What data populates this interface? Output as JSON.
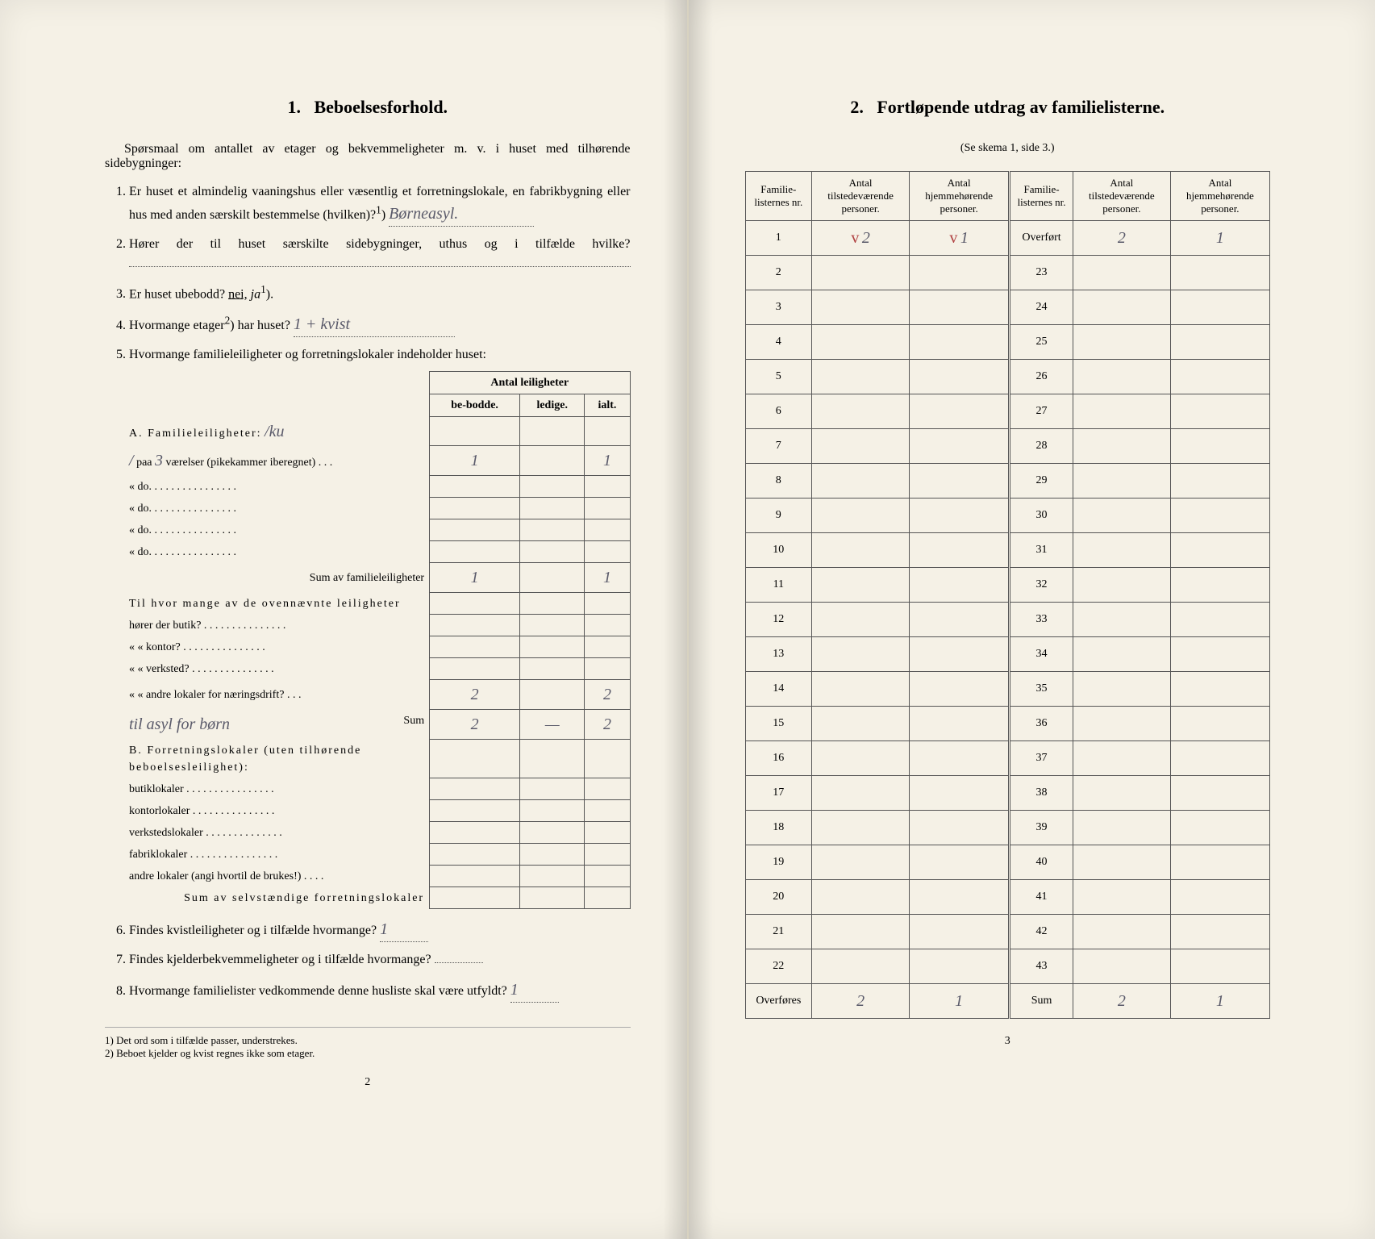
{
  "left": {
    "section_number": "1.",
    "section_title": "Beboelsesforhold.",
    "intro": "Spørsmaal om antallet av etager og bekvemmeligheter m. v. i huset med tilhørende sidebygninger:",
    "q1": "Er huset et almindelig vaaningshus eller væsentlig et forretningslokale, en fabrikbygning eller hus med anden særskilt bestemmelse (hvilken)?",
    "q1_sup": "1",
    "q1_answer": "Børneasyl.",
    "q2": "Hører der til huset særskilte sidebygninger, uthus og i tilfælde hvilke?",
    "q2_answer": "",
    "q3_pre": "Er huset ubebodd?",
    "q3_nei": "nei,",
    "q3_ja": "ja",
    "q3_sup": "1",
    "q4_pre": "Hvormange etager",
    "q4_sup": "2",
    "q4_post": ") har huset?",
    "q4_answer": "1 + kvist",
    "q5": "Hvormange familieleiligheter og forretningslokaler indeholder huset:",
    "table_header_group": "Antal leiligheter",
    "table_header_bebodde": "be-bodde.",
    "table_header_ledige": "ledige.",
    "table_header_ialt": "ialt.",
    "sectionA_title": "A. Familieleiligheter:",
    "sectionA_note": "/ku",
    "rowA1_prefix": "/",
    "rowA1_paa": "paa",
    "rowA1_num": "3",
    "rowA1_text": "værelser (pikekammer iberegnet) . . .",
    "rowA1_bebodde": "1",
    "rowA1_ledige": "",
    "rowA1_ialt": "1",
    "rowA2": "«        do.        . . . . . . . . . . . . . . .",
    "rowA3": "«        do.        . . . . . . . . . . . . . . .",
    "rowA4": "«        do.        . . . . . . . . . . . . . . .",
    "rowA5": "«        do.        . . . . . . . . . . . . . . .",
    "sumA_label": "Sum av familieleiligheter",
    "sumA_bebodde": "1",
    "sumA_ledige": "",
    "sumA_ialt": "1",
    "ovennevnte_q": "Til hvor mange av de ovennævnte leiligheter",
    "butik": "hører der butik? . . . . . . . . . . . . . . .",
    "kontor": "«     « kontor? . . . . . . . . . . . . . . .",
    "verksted": "«     « verksted? . . . . . . . . . . . . . . .",
    "andre_naering": "«     « andre lokaler for næringsdrift? . . .",
    "andre_naering_bebodde": "2",
    "andre_naering_ialt": "2",
    "handwritten_note": "til asyl for børn",
    "sum_label": "Sum",
    "sum_bebodde": "2",
    "sum_ledige": "—",
    "sum_ialt": "2",
    "sectionB_title": "B. Forretningslokaler (uten tilhørende beboelsesleilighet):",
    "butiklokaler": "butiklokaler . . . . . . . . . . . . . . . .",
    "kontorlokaler": "kontorlokaler . . . . . . . . . . . . . . .",
    "verkstedslokaler": "verkstedslokaler . . . . . . . . . . . . . .",
    "fabriklokaler": "fabriklokaler . . . . . . . . . . . . . . . .",
    "andre_lokaler": "andre lokaler (angi hvortil de brukes!) . . . .",
    "sumB_label": "Sum av selvstændige forretningslokaler",
    "q6": "Findes kvistleiligheter og i tilfælde hvormange?",
    "q6_answer": "1",
    "q7": "Findes kjelderbekvemmeligheter og i tilfælde hvormange?",
    "q7_answer": "",
    "q8": "Hvormange familielister vedkommende denne husliste skal være utfyldt?",
    "q8_answer": "1",
    "footnote1_num": "1)",
    "footnote1": "Det ord som i tilfælde passer, understrekes.",
    "footnote2_num": "2)",
    "footnote2": "Beboet kjelder og kvist regnes ikke som etager.",
    "page_number": "2"
  },
  "right": {
    "section_number": "2.",
    "section_title": "Fortløpende utdrag av familielisterne.",
    "subtitle": "(Se skema 1, side 3.)",
    "col_familie_nr": "Familie-listernes nr.",
    "col_tilstede": "Antal tilstedeværende personer.",
    "col_hjemme": "Antal hjemmehørende personer.",
    "overfort_label": "Overført",
    "overfort_tilstede": "2",
    "overfort_hjemme": "1",
    "row1_nr": "1",
    "row1_tilstede_mark": "v",
    "row1_tilstede": "2",
    "row1_hjemme_mark": "v",
    "row1_hjemme": "1",
    "rows_left": [
      "2",
      "3",
      "4",
      "5",
      "6",
      "7",
      "8",
      "9",
      "10",
      "11",
      "12",
      "13",
      "14",
      "15",
      "16",
      "17",
      "18",
      "19",
      "20",
      "21",
      "22"
    ],
    "rows_right": [
      "23",
      "24",
      "25",
      "26",
      "27",
      "28",
      "29",
      "30",
      "31",
      "32",
      "33",
      "34",
      "35",
      "36",
      "37",
      "38",
      "39",
      "40",
      "41",
      "42",
      "43"
    ],
    "overfores_label": "Overføres",
    "overfores_tilstede": "2",
    "overfores_hjemme": "1",
    "sum_label": "Sum",
    "sum_tilstede": "2",
    "sum_hjemme": "1",
    "page_number": "3"
  }
}
